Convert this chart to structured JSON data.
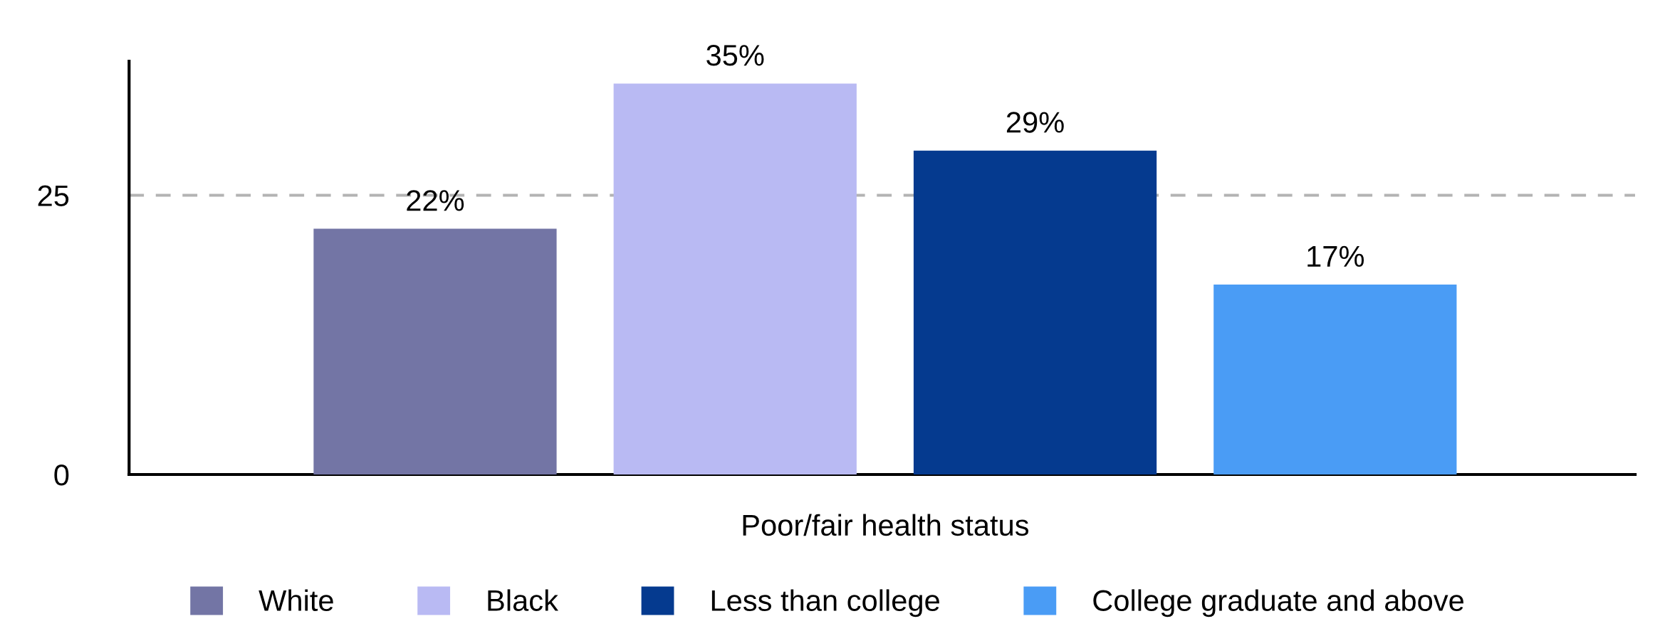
{
  "chart_data": {
    "type": "bar",
    "categories": [
      "Poor/fair health status"
    ],
    "series": [
      {
        "name": "White",
        "color": "#7375a5",
        "values": [
          22
        ],
        "value_labels": [
          "22%"
        ]
      },
      {
        "name": "Black",
        "color": "#b9baf3",
        "values": [
          35
        ],
        "value_labels": [
          "35%"
        ]
      },
      {
        "name": "Less than college",
        "color": "#053a8f",
        "values": [
          29
        ],
        "value_labels": [
          "29%"
        ]
      },
      {
        "name": "College graduate and above",
        "color": "#4a9cf5",
        "values": [
          17
        ],
        "value_labels": [
          "17%"
        ]
      }
    ],
    "ylim": [
      0,
      37
    ],
    "yticks": [
      0,
      25
    ],
    "grid": "y",
    "legend": "bottom"
  }
}
